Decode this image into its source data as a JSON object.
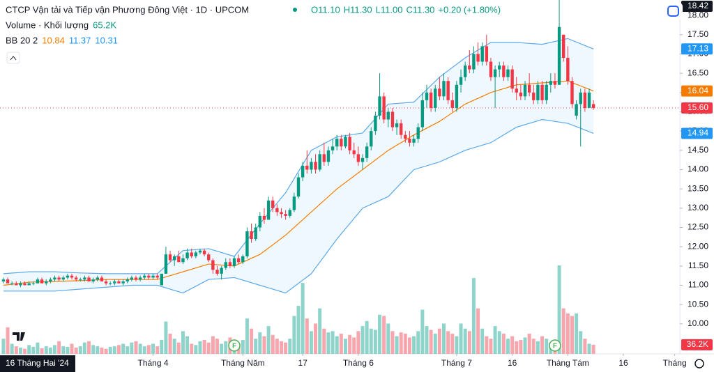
{
  "chart_data": {
    "type": "candlestick",
    "title": "CTCP Vận tải và Tiếp vận Phương Đông Việt · 1D · UPCOM",
    "ohlc_legend": [
      "O11.10",
      "H11.30",
      "L11.00",
      "C11.30",
      "+0.20 (+1.80%)"
    ],
    "volume_legend": {
      "name": "Volume · Khối lượng",
      "value": "65.2K"
    },
    "bb_legend": {
      "name": "BB 20 2",
      "values": [
        "10.84",
        "11.37",
        "10.31"
      ],
      "colors": [
        "#f57c00",
        "#2196f3",
        "#2196f3"
      ]
    },
    "date_label": "16 Tháng Hai '24",
    "up_color": "#089981",
    "down_color": "#f23645",
    "up_volume_color": "#8fd4cb",
    "down_volume_color": "#f7a6ae",
    "xlim": [
      -0.8,
      158.2
    ],
    "ylim": [
      9.22,
      18.4
    ],
    "vlim": [
      0,
      1400
    ],
    "yticks": [
      {
        "value": 18,
        "label": "18.00"
      },
      {
        "value": 17.5,
        "label": "17.50"
      },
      {
        "value": 17,
        "label": "17.00"
      },
      {
        "value": 16.5,
        "label": "16.50"
      },
      {
        "value": 16,
        "label": "16.00"
      },
      {
        "value": 15.5,
        "label": "15.50"
      },
      {
        "value": 15,
        "label": "15.00"
      },
      {
        "value": 14.5,
        "label": "14.50"
      },
      {
        "value": 14,
        "label": "14.00"
      },
      {
        "value": 13.5,
        "label": "13.50"
      },
      {
        "value": 13,
        "label": "13.00"
      },
      {
        "value": 12.5,
        "label": "12.50"
      },
      {
        "value": 12,
        "label": "12.00"
      },
      {
        "value": 11.5,
        "label": "11.50"
      },
      {
        "value": 11,
        "label": "11.00"
      },
      {
        "value": 10.5,
        "label": "10.50"
      },
      {
        "value": 10,
        "label": "10.00"
      }
    ],
    "xlabels": [
      {
        "value": 35,
        "label": "Tháng 4"
      },
      {
        "value": 56,
        "label": "Tháng Năm"
      },
      {
        "value": 70,
        "label": "17"
      },
      {
        "value": 83,
        "label": "Tháng 6"
      },
      {
        "value": 106,
        "label": "Tháng 7"
      },
      {
        "value": 119,
        "label": "16"
      },
      {
        "value": 132,
        "label": "Tháng Tám"
      },
      {
        "value": 145,
        "label": "16"
      },
      {
        "value": 157,
        "label": "Tháng"
      }
    ],
    "price_labels": [
      {
        "value": 18.42,
        "label": "18.42",
        "color": "#131722"
      },
      {
        "value": 17.13,
        "label": "17.13",
        "color": "#2196f3"
      },
      {
        "value": 16.04,
        "label": "16.04",
        "color": "#f57c00"
      },
      {
        "value": 15.6,
        "label": "15.60",
        "color": "#f23645"
      },
      {
        "value": 14.94,
        "label": "14.94",
        "color": "#2196f3"
      }
    ],
    "last_price": 15.6,
    "volume_label": {
      "value": 36.2,
      "label": "36.2K",
      "color": "#f23645"
    },
    "markers": [
      {
        "index": 54,
        "label": "F"
      },
      {
        "index": 129,
        "label": "F"
      }
    ],
    "ohlc": [
      [
        11.1,
        11.2,
        11.05,
        11.15
      ],
      [
        11.15,
        11.2,
        11.05,
        11.05
      ],
      [
        11.05,
        11.1,
        11.0,
        11.05
      ],
      [
        11.05,
        11.1,
        11.0,
        11.0
      ],
      [
        11.0,
        11.1,
        10.95,
        11.05
      ],
      [
        11.05,
        11.1,
        11.0,
        11.0
      ],
      [
        11.0,
        11.1,
        11.0,
        11.05
      ],
      [
        11.05,
        11.1,
        11.0,
        11.05
      ],
      [
        11.05,
        11.2,
        11.05,
        11.15
      ],
      [
        11.15,
        11.2,
        11.05,
        11.05
      ],
      [
        11.05,
        11.15,
        11.0,
        11.1
      ],
      [
        11.1,
        11.2,
        11.05,
        11.15
      ],
      [
        11.15,
        11.25,
        11.1,
        11.2
      ],
      [
        11.2,
        11.25,
        11.1,
        11.15
      ],
      [
        11.15,
        11.25,
        11.1,
        11.2
      ],
      [
        11.2,
        11.3,
        11.15,
        11.25
      ],
      [
        11.25,
        11.3,
        11.15,
        11.2
      ],
      [
        11.2,
        11.25,
        11.1,
        11.15
      ],
      [
        11.15,
        11.2,
        11.1,
        11.15
      ],
      [
        11.15,
        11.25,
        11.1,
        11.2
      ],
      [
        11.2,
        11.25,
        11.1,
        11.1
      ],
      [
        11.1,
        11.2,
        11.05,
        11.15
      ],
      [
        11.15,
        11.25,
        11.1,
        11.2
      ],
      [
        11.2,
        11.25,
        11.1,
        11.1
      ],
      [
        11.1,
        11.15,
        11.0,
        11.05
      ],
      [
        11.05,
        11.1,
        11.0,
        11.05
      ],
      [
        11.05,
        11.15,
        11.0,
        11.1
      ],
      [
        11.1,
        11.15,
        11.05,
        11.05
      ],
      [
        11.05,
        11.15,
        11.0,
        11.1
      ],
      [
        11.1,
        11.2,
        11.05,
        11.15
      ],
      [
        11.15,
        11.25,
        11.1,
        11.2
      ],
      [
        11.2,
        11.25,
        11.1,
        11.15
      ],
      [
        11.15,
        11.25,
        11.1,
        11.2
      ],
      [
        11.2,
        11.3,
        11.15,
        11.25
      ],
      [
        11.25,
        11.3,
        11.15,
        11.2
      ],
      [
        11.2,
        11.3,
        11.15,
        11.25
      ],
      [
        11.25,
        11.3,
        11.15,
        11.2
      ],
      [
        11.0,
        11.3,
        11.0,
        11.3
      ],
      [
        11.3,
        12.0,
        11.3,
        11.8
      ],
      [
        11.8,
        11.9,
        11.6,
        11.65
      ],
      [
        11.65,
        11.8,
        11.5,
        11.75
      ],
      [
        11.75,
        11.9,
        11.6,
        11.6
      ],
      [
        11.6,
        11.8,
        11.55,
        11.7
      ],
      [
        11.7,
        11.95,
        11.65,
        11.85
      ],
      [
        11.85,
        11.95,
        11.7,
        11.75
      ],
      [
        11.75,
        11.9,
        11.7,
        11.85
      ],
      [
        11.85,
        11.95,
        11.8,
        11.9
      ],
      [
        11.9,
        11.95,
        11.75,
        11.8
      ],
      [
        11.8,
        11.85,
        11.6,
        11.65
      ],
      [
        11.65,
        11.7,
        11.3,
        11.4
      ],
      [
        11.4,
        11.5,
        11.25,
        11.3
      ],
      [
        11.3,
        11.5,
        11.15,
        11.45
      ],
      [
        11.45,
        11.7,
        11.4,
        11.6
      ],
      [
        11.6,
        11.7,
        11.45,
        11.5
      ],
      [
        11.5,
        11.75,
        11.45,
        11.7
      ],
      [
        11.7,
        11.8,
        11.55,
        11.6
      ],
      [
        11.6,
        11.8,
        11.55,
        11.75
      ],
      [
        11.75,
        12.5,
        11.7,
        12.4
      ],
      [
        12.4,
        12.6,
        12.1,
        12.2
      ],
      [
        12.2,
        12.6,
        12.15,
        12.5
      ],
      [
        12.5,
        12.9,
        12.4,
        12.8
      ],
      [
        12.8,
        13.0,
        12.6,
        12.7
      ],
      [
        12.7,
        13.3,
        12.7,
        13.2
      ],
      [
        13.2,
        13.3,
        12.9,
        13.0
      ],
      [
        13.0,
        13.1,
        12.8,
        12.9
      ],
      [
        12.9,
        13.0,
        12.75,
        12.85
      ],
      [
        12.85,
        12.95,
        12.7,
        12.8
      ],
      [
        12.8,
        13.0,
        12.75,
        12.95
      ],
      [
        12.95,
        13.4,
        12.9,
        13.3
      ],
      [
        13.3,
        13.9,
        13.25,
        13.8
      ],
      [
        13.8,
        14.2,
        13.7,
        14.1
      ],
      [
        14.1,
        14.5,
        13.9,
        14.0
      ],
      [
        14.0,
        14.3,
        13.9,
        14.2
      ],
      [
        14.2,
        14.4,
        13.9,
        14.0
      ],
      [
        14.0,
        14.5,
        13.95,
        14.4
      ],
      [
        14.4,
        14.7,
        14.1,
        14.2
      ],
      [
        14.2,
        14.6,
        14.1,
        14.5
      ],
      [
        14.5,
        14.8,
        14.4,
        14.6
      ],
      [
        14.6,
        14.9,
        14.5,
        14.8
      ],
      [
        14.8,
        14.9,
        14.5,
        14.6
      ],
      [
        14.6,
        14.9,
        14.55,
        14.85
      ],
      [
        14.85,
        14.95,
        14.4,
        14.5
      ],
      [
        14.5,
        14.7,
        14.3,
        14.4
      ],
      [
        14.4,
        14.6,
        14.1,
        14.2
      ],
      [
        14.2,
        14.4,
        14.0,
        14.3
      ],
      [
        14.3,
        14.7,
        14.2,
        14.6
      ],
      [
        14.6,
        15.1,
        14.5,
        15.0
      ],
      [
        15.0,
        15.5,
        14.9,
        15.4
      ],
      [
        15.4,
        16.5,
        15.3,
        15.9
      ],
      [
        15.9,
        16.0,
        15.2,
        15.3
      ],
      [
        15.3,
        15.6,
        15.1,
        15.5
      ],
      [
        15.5,
        15.6,
        15.0,
        15.1
      ],
      [
        15.1,
        15.3,
        14.9,
        15.2
      ],
      [
        15.2,
        15.3,
        14.8,
        14.9
      ],
      [
        14.9,
        15.0,
        14.7,
        14.8
      ],
      [
        14.8,
        15.0,
        14.6,
        14.7
      ],
      [
        14.7,
        14.9,
        14.6,
        14.8
      ],
      [
        14.8,
        15.2,
        14.7,
        15.1
      ],
      [
        15.1,
        16.0,
        15.0,
        15.8
      ],
      [
        15.8,
        16.2,
        15.6,
        16.0
      ],
      [
        16.0,
        16.1,
        15.5,
        15.6
      ],
      [
        15.6,
        16.2,
        15.5,
        16.1
      ],
      [
        16.1,
        16.4,
        15.8,
        15.9
      ],
      [
        15.9,
        16.5,
        15.8,
        16.3
      ],
      [
        16.3,
        16.4,
        15.7,
        15.8
      ],
      [
        15.8,
        16.0,
        15.5,
        15.6
      ],
      [
        15.6,
        16.3,
        15.5,
        16.2
      ],
      [
        16.2,
        16.6,
        16.0,
        16.4
      ],
      [
        16.4,
        16.8,
        16.3,
        16.7
      ],
      [
        16.7,
        17.1,
        16.5,
        16.6
      ],
      [
        16.6,
        17.2,
        16.5,
        17.0
      ],
      [
        17.0,
        17.3,
        16.7,
        16.8
      ],
      [
        16.8,
        17.3,
        16.7,
        17.2
      ],
      [
        17.2,
        17.5,
        16.7,
        16.8
      ],
      [
        16.8,
        16.9,
        16.3,
        16.4
      ],
      [
        16.4,
        16.7,
        15.6,
        16.6
      ],
      [
        16.6,
        16.8,
        16.4,
        16.7
      ],
      [
        16.7,
        16.8,
        16.3,
        16.4
      ],
      [
        16.4,
        16.7,
        16.3,
        16.6
      ],
      [
        16.6,
        16.7,
        16.0,
        16.1
      ],
      [
        16.1,
        16.4,
        15.8,
        16.0
      ],
      [
        16.0,
        16.2,
        15.8,
        15.9
      ],
      [
        15.9,
        16.3,
        15.8,
        16.2
      ],
      [
        16.2,
        16.5,
        15.9,
        16.0
      ],
      [
        16.0,
        16.2,
        15.7,
        15.8
      ],
      [
        15.8,
        16.3,
        15.7,
        16.2
      ],
      [
        16.2,
        16.3,
        15.7,
        15.8
      ],
      [
        15.8,
        16.3,
        15.7,
        16.2
      ],
      [
        16.2,
        16.5,
        16.0,
        16.3
      ],
      [
        16.3,
        16.5,
        16.1,
        16.2
      ],
      [
        16.2,
        18.42,
        16.2,
        17.7
      ],
      [
        17.5,
        17.5,
        16.8,
        16.9
      ],
      [
        16.9,
        17.2,
        16.2,
        16.3
      ],
      [
        16.3,
        16.4,
        15.6,
        15.7
      ],
      [
        15.4,
        15.8,
        15.3,
        15.7
      ],
      [
        15.7,
        16.1,
        14.6,
        16.0
      ],
      [
        16.0,
        16.1,
        15.5,
        15.6
      ],
      [
        15.6,
        16.1,
        15.6,
        16.0
      ],
      [
        15.7,
        15.8,
        15.55,
        15.6
      ]
    ],
    "volume": [
      60,
      105,
      40,
      30,
      25,
      20,
      35,
      28,
      45,
      22,
      30,
      25,
      35,
      50,
      30,
      28,
      40,
      25,
      30,
      45,
      50,
      35,
      30,
      25,
      20,
      28,
      30,
      35,
      40,
      30,
      45,
      50,
      40,
      30,
      35,
      40,
      30,
      55,
      128,
      80,
      60,
      45,
      90,
      70,
      40,
      35,
      50,
      55,
      45,
      70,
      60,
      40,
      50,
      65,
      45,
      40,
      55,
      140,
      100,
      60,
      85,
      70,
      110,
      75,
      60,
      50,
      45,
      60,
      150,
      190,
      281,
      140,
      90,
      120,
      180,
      100,
      85,
      90,
      70,
      80,
      60,
      75,
      65,
      90,
      110,
      130,
      100,
      95,
      155,
      150,
      120,
      90,
      70,
      85,
      80,
      65,
      70,
      90,
      175,
      110,
      95,
      80,
      100,
      120,
      90,
      80,
      70,
      120,
      100,
      90,
      300,
      180,
      100,
      70,
      60,
      110,
      90,
      80,
      60,
      70,
      50,
      55,
      65,
      80,
      60,
      50,
      70,
      60,
      45,
      50,
      350,
      180,
      160,
      150,
      160,
      90,
      60,
      40,
      36.2
    ],
    "bb": {
      "x": [
        0,
        6,
        12,
        18,
        24,
        30,
        36,
        42,
        48,
        54,
        60,
        66,
        72,
        78,
        84,
        90,
        96,
        102,
        108,
        114,
        120,
        126,
        132,
        138
      ],
      "upper": [
        11.3,
        11.35,
        11.35,
        11.32,
        11.3,
        11.3,
        11.3,
        11.9,
        11.95,
        11.75,
        12.6,
        13.4,
        14.5,
        14.85,
        14.95,
        15.7,
        15.75,
        16.4,
        16.9,
        17.3,
        17.3,
        17.25,
        17.4,
        17.13
      ],
      "middle": [
        11.0,
        11.08,
        11.1,
        11.12,
        11.15,
        11.15,
        11.15,
        11.35,
        11.55,
        11.5,
        11.8,
        12.3,
        12.9,
        13.5,
        14.0,
        14.5,
        14.9,
        15.25,
        15.7,
        16.0,
        16.2,
        16.25,
        16.3,
        16.04
      ],
      "lower": [
        10.85,
        10.85,
        10.85,
        10.9,
        10.95,
        11.0,
        11.0,
        10.8,
        11.15,
        11.2,
        11.0,
        10.8,
        11.3,
        12.2,
        13.0,
        13.3,
        14.0,
        14.2,
        14.5,
        14.7,
        15.1,
        15.3,
        15.2,
        14.94
      ],
      "band_color": "#5aa9ec",
      "middle_color": "#f57c00"
    }
  }
}
